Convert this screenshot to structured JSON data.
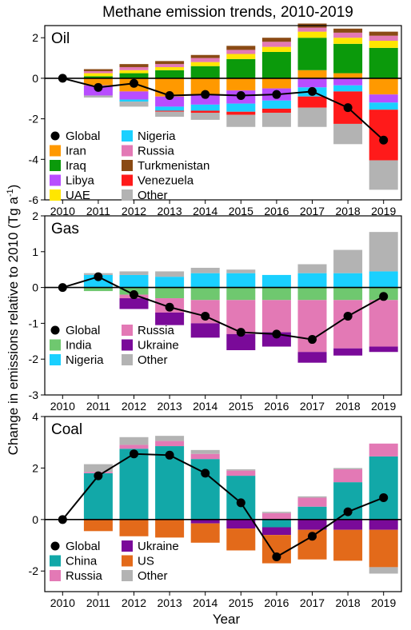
{
  "figure": {
    "title": "Methane emission trends, 2010-2019",
    "ylabel_main": "Change in emissions relative to 2010 (Tg a",
    "ylabel_sup": "-1",
    "ylabel_close": ")",
    "xlabel": "Year"
  },
  "chart_data": [
    {
      "type": "bar",
      "stacked": true,
      "panel_label": "Oil",
      "categories": [
        "2010",
        "2011",
        "2012",
        "2013",
        "2014",
        "2015",
        "2016",
        "2017",
        "2018",
        "2019"
      ],
      "ylim": [
        -6,
        2.6
      ],
      "yticks": [
        -6,
        -4,
        -2,
        0,
        2
      ],
      "legend_ncol": 2,
      "series": [
        {
          "name": "Iran",
          "color": "#ff9900",
          "values": [
            0,
            -0.35,
            -0.65,
            -0.9,
            -0.8,
            -0.6,
            -0.5,
            0.4,
            0.25,
            -0.8
          ]
        },
        {
          "name": "Iraq",
          "color": "#0b9a0b",
          "values": [
            0,
            0.1,
            0.25,
            0.4,
            0.6,
            0.95,
            1.3,
            1.6,
            1.45,
            1.5
          ]
        },
        {
          "name": "Libya",
          "color": "#b84dff",
          "values": [
            0,
            -0.5,
            -0.4,
            -0.5,
            -0.5,
            -0.65,
            -0.6,
            -0.45,
            -0.35,
            -0.4
          ]
        },
        {
          "name": "UAE",
          "color": "#ffe600",
          "values": [
            0,
            0.15,
            0.15,
            0.15,
            0.2,
            0.25,
            0.25,
            0.3,
            0.3,
            0.35
          ]
        },
        {
          "name": "Nigeria",
          "color": "#1ad0ff",
          "values": [
            0,
            0,
            -0.1,
            -0.2,
            -0.3,
            -0.4,
            -0.4,
            -0.45,
            -0.3,
            -0.35
          ]
        },
        {
          "name": "Russia",
          "color": "#e379b5",
          "values": [
            0,
            0.1,
            0.15,
            0.15,
            0.2,
            0.2,
            0.25,
            0.2,
            0.25,
            0.25
          ]
        },
        {
          "name": "Turkmenistan",
          "color": "#8a4a14",
          "values": [
            0,
            0.1,
            0.15,
            0.15,
            0.15,
            0.2,
            0.2,
            0.2,
            0.2,
            0.2
          ]
        },
        {
          "name": "Venezuela",
          "color": "#ff1a1a",
          "values": [
            0,
            0,
            0,
            -0.05,
            -0.1,
            -0.15,
            -0.2,
            -0.55,
            -1.6,
            -2.5
          ]
        },
        {
          "name": "Other",
          "color": "#b3b3b3",
          "values": [
            0,
            -0.1,
            -0.25,
            -0.25,
            -0.35,
            -0.6,
            -0.7,
            -0.95,
            -1.0,
            -1.45
          ]
        }
      ],
      "line": {
        "name": "Global",
        "values": [
          0,
          -0.45,
          -0.25,
          -0.85,
          -0.8,
          -0.85,
          -0.8,
          -0.65,
          -1.45,
          -3.05
        ]
      }
    },
    {
      "type": "bar",
      "stacked": true,
      "panel_label": "Gas",
      "categories": [
        "2010",
        "2011",
        "2012",
        "2013",
        "2014",
        "2015",
        "2016",
        "2017",
        "2018",
        "2019"
      ],
      "ylim": [
        -3,
        2
      ],
      "yticks": [
        -3,
        -2,
        -1,
        0,
        1,
        2
      ],
      "legend_ncol": 2,
      "series": [
        {
          "name": "India",
          "color": "#6fc86f",
          "values": [
            0,
            -0.1,
            -0.2,
            -0.3,
            -0.35,
            -0.35,
            -0.35,
            -0.35,
            -0.35,
            -0.35
          ]
        },
        {
          "name": "Nigeria",
          "color": "#1ad0ff",
          "values": [
            0,
            0.35,
            0.35,
            0.3,
            0.4,
            0.4,
            0.35,
            0.4,
            0.4,
            0.45
          ]
        },
        {
          "name": "Russia",
          "color": "#e379b5",
          "values": [
            0,
            0,
            -0.1,
            -0.4,
            -0.65,
            -0.95,
            -0.9,
            -1.45,
            -1.35,
            -1.3
          ]
        },
        {
          "name": "Ukraine",
          "color": "#7a0a99",
          "values": [
            0,
            0,
            -0.3,
            -0.35,
            -0.4,
            -0.45,
            -0.4,
            -0.3,
            -0.2,
            -0.15
          ]
        },
        {
          "name": "Other",
          "color": "#b3b3b3",
          "values": [
            0,
            0.05,
            0.1,
            0.15,
            0.15,
            0.1,
            0,
            0.25,
            0.65,
            1.1
          ]
        }
      ],
      "line": {
        "name": "Global",
        "values": [
          0,
          0.3,
          -0.2,
          -0.55,
          -0.8,
          -1.25,
          -1.3,
          -1.45,
          -0.8,
          -0.25
        ]
      }
    },
    {
      "type": "bar",
      "stacked": true,
      "panel_label": "Coal",
      "categories": [
        "2010",
        "2011",
        "2012",
        "2013",
        "2014",
        "2015",
        "2016",
        "2017",
        "2018",
        "2019"
      ],
      "xlabel": "Year",
      "ylim": [
        -2.8,
        4
      ],
      "yticks": [
        -2,
        0,
        2,
        4
      ],
      "legend_ncol": 2,
      "series": [
        {
          "name": "China",
          "color": "#12a8a8",
          "values": [
            0,
            1.8,
            2.75,
            2.85,
            2.35,
            1.7,
            -0.3,
            0.5,
            1.45,
            2.45
          ]
        },
        {
          "name": "Russia",
          "color": "#e379b5",
          "values": [
            0,
            0.05,
            0.15,
            0.2,
            0.2,
            0.2,
            0.25,
            0.35,
            0.5,
            0.5
          ]
        },
        {
          "name": "Ukraine",
          "color": "#7a0a99",
          "values": [
            0,
            0,
            0,
            0,
            -0.15,
            -0.35,
            -0.3,
            -0.4,
            -0.4,
            -0.4
          ]
        },
        {
          "name": "US",
          "color": "#e36a1a",
          "values": [
            0,
            -0.45,
            -0.65,
            -0.7,
            -0.75,
            -0.85,
            -1.1,
            -1.15,
            -1.2,
            -1.45
          ]
        },
        {
          "name": "Other",
          "color": "#b3b3b3",
          "values": [
            0,
            0.3,
            0.3,
            0.2,
            0.15,
            0.05,
            0.05,
            0.05,
            0.05,
            -0.25
          ]
        }
      ],
      "line": {
        "name": "Global",
        "values": [
          0,
          1.7,
          2.55,
          2.5,
          1.8,
          0.65,
          -1.45,
          -0.65,
          0.3,
          0.85
        ]
      }
    }
  ]
}
